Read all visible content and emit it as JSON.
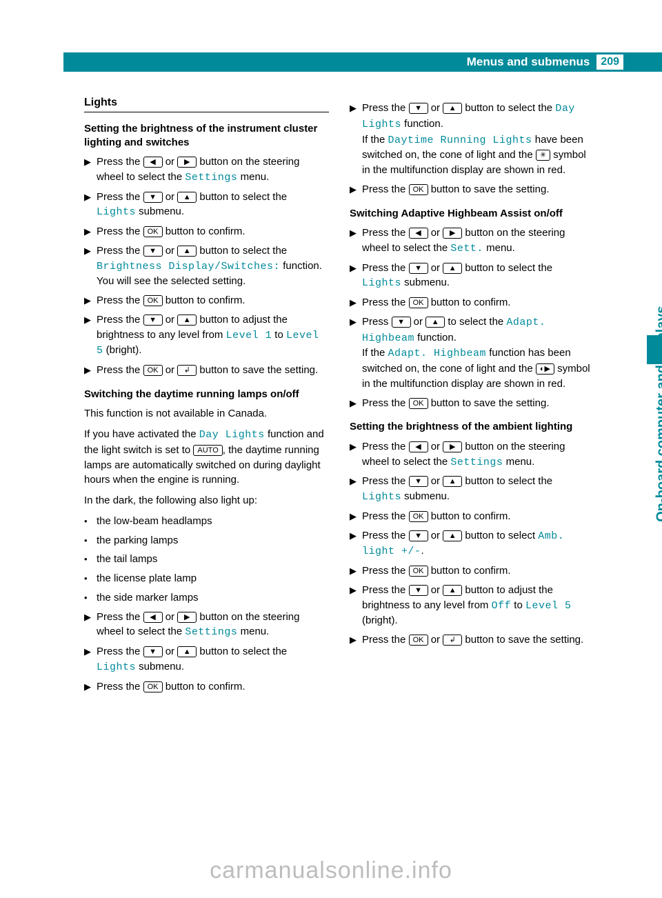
{
  "header": {
    "title": "Menus and submenus",
    "page": "209"
  },
  "sidebar": {
    "label": "On-board computer and displays"
  },
  "btn": {
    "left": "◀",
    "right": "▶",
    "down": "▼",
    "up": "▲",
    "ok": "OK",
    "back": "↲",
    "auto": "AUTO",
    "light": "✳",
    "beam": "◐▶"
  },
  "mono": {
    "settings": "Settings",
    "lights_sub": "Lights",
    "bright_disp": "Brightness Display/Switches:",
    "level1": "Level 1",
    "level5": "Level 5",
    "day_lights": "Day Lights",
    "drl": "Daytime Running Lights",
    "sett": "Sett.",
    "adapt_hb": "Adapt. Highbeam",
    "adapt_hb2": "Adapt. Highbeam",
    "amb": "Amb. light +/-",
    "off": "Off",
    "level5b": "Level 5"
  },
  "left": {
    "title": "Lights",
    "h1": "Setting the brightness of the instrument cluster lighting and switches",
    "s1a": "Press the ",
    "s1b": " or ",
    "s1c": " button on the steering wheel to select the ",
    "s1d": " menu.",
    "s2a": "Press the ",
    "s2b": " or ",
    "s2c": " button to select the ",
    "s2d": " submenu.",
    "s3a": "Press the ",
    "s3b": " button to confirm.",
    "s4a": "Press the ",
    "s4b": " or ",
    "s4c": " button to select the ",
    "s4d": " function.",
    "s4e": "You will see the selected setting.",
    "s5a": "Press the ",
    "s5b": " button to confirm.",
    "s6a": "Press the ",
    "s6b": " or ",
    "s6c": " button to adjust the brightness to any level from ",
    "s6d": " to ",
    "s6e": " (bright).",
    "s7a": "Press the ",
    "s7b": " or ",
    "s7c": " button to save the setting.",
    "h2": "Switching the daytime running lamps on/off",
    "p1": "This function is not available in Canada.",
    "p2a": "If you have activated the ",
    "p2b": " function and the light switch is set to ",
    "p2c": ", the daytime running lamps are automatically switched on during daylight hours when the engine is running.",
    "p3": "In the dark, the following also light up:",
    "b1": "the low-beam headlamps",
    "b2": "the parking lamps",
    "b3": "the tail lamps",
    "b4": "the license plate lamp",
    "b5": "the side marker lamps",
    "s8a": "Press the ",
    "s8b": " or ",
    "s8c": " button on the steering wheel to select the ",
    "s8d": " menu.",
    "s9a": "Press the ",
    "s9b": " or ",
    "s9c": " button to select the ",
    "s9d": " submenu.",
    "s10a": "Press the ",
    "s10b": " button to confirm."
  },
  "right": {
    "s1a": "Press the ",
    "s1b": " or ",
    "s1c": " button to select the ",
    "s1d": " function.",
    "s1e": "If the ",
    "s1f": " have been switched on, the cone of light and the ",
    "s1g": " symbol in the multifunction display are shown in red.",
    "s2a": "Press the ",
    "s2b": " button to save the setting.",
    "h1": "Switching Adaptive Highbeam Assist on/off",
    "s3a": "Press the ",
    "s3b": " or ",
    "s3c": " button on the steering wheel to select the ",
    "s3d": " menu.",
    "s4a": "Press the ",
    "s4b": " or ",
    "s4c": " button to select the ",
    "s4d": " submenu.",
    "s5a": "Press the ",
    "s5b": " button to confirm.",
    "s6a": "Press ",
    "s6b": " or ",
    "s6c": " to select the ",
    "s6d": " function.",
    "s6e": "If the ",
    "s6f": " function has been switched on, the cone of light and the ",
    "s6g": " symbol in the multifunction display are shown in red.",
    "s7a": "Press the ",
    "s7b": " button to save the setting.",
    "h2": "Setting the brightness of the ambient lighting",
    "s8a": "Press the ",
    "s8b": " or ",
    "s8c": " button on the steering wheel to select the ",
    "s8d": " menu.",
    "s9a": "Press the ",
    "s9b": " or ",
    "s9c": " button to select the ",
    "s9d": " submenu.",
    "s10a": "Press the ",
    "s10b": " button to confirm.",
    "s11a": "Press the ",
    "s11b": " or ",
    "s11c": " button to select ",
    "s11d": ".",
    "s12a": "Press the ",
    "s12b": " button to confirm.",
    "s13a": "Press the ",
    "s13b": " or ",
    "s13c": " button to adjust the brightness to any level from ",
    "s13d": " to ",
    "s13e": " (bright).",
    "s14a": "Press the ",
    "s14b": " or ",
    "s14c": " button to save the setting."
  },
  "footer": "carmanualsonline.info"
}
